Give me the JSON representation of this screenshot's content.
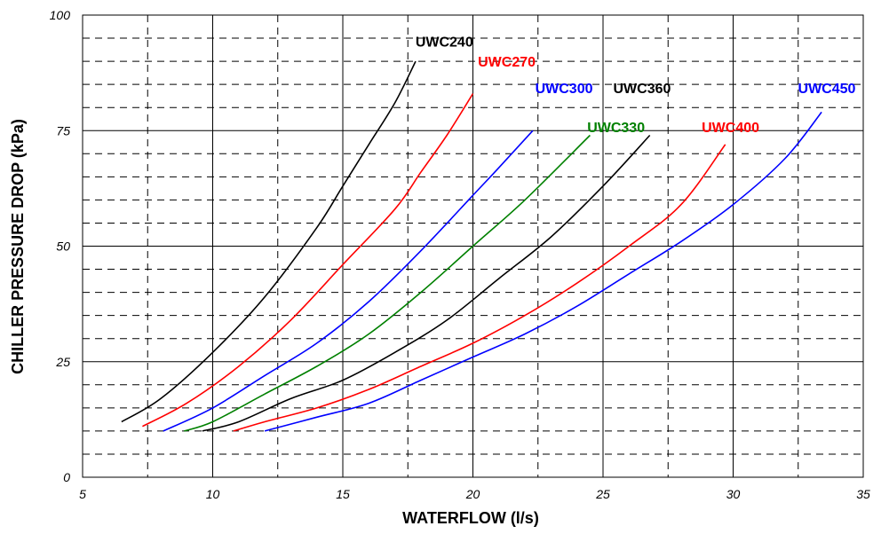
{
  "chart_data": {
    "type": "line",
    "xlabel": "WATERFLOW (l/s)",
    "ylabel": "CHILLER PRESSURE DROP (kPa)",
    "xlim": [
      5,
      35
    ],
    "ylim": [
      0,
      100
    ],
    "x_ticks": [
      "5",
      "10",
      "15",
      "20",
      "25",
      "30",
      "35"
    ],
    "y_ticks": [
      "0",
      "25",
      "50",
      "75",
      "100"
    ],
    "x_major_step": 5,
    "x_minor_step": 2.5,
    "y_major_step": 25,
    "y_minor_step": 5,
    "grid": true,
    "legend": "inline labels",
    "series": [
      {
        "name": "UWC240",
        "color": "#000000",
        "label_at": [
          18.9,
          94.3
        ],
        "x": [
          6.5,
          8,
          10,
          12,
          14,
          15,
          16,
          17,
          17.8
        ],
        "y": [
          12,
          17,
          27,
          39,
          54,
          63,
          72,
          81,
          90
        ]
      },
      {
        "name": "UWC270",
        "color": "#ff0000",
        "label_at": [
          21.3,
          90.0
        ],
        "x": [
          7.3,
          9,
          11,
          13,
          15,
          17,
          18,
          19,
          20
        ],
        "y": [
          11,
          16,
          24,
          34,
          46,
          58,
          66,
          74,
          83
        ]
      },
      {
        "name": "UWC300",
        "color": "#0000ff",
        "label_at": [
          23.5,
          84.3
        ],
        "x": [
          8.1,
          10,
          12,
          14,
          16,
          18,
          20,
          21,
          22.3
        ],
        "y": [
          10,
          15,
          22,
          29,
          38,
          49,
          61,
          67,
          75
        ]
      },
      {
        "name": "UWC330",
        "color": "#008000",
        "label_at": [
          25.5,
          75.8
        ],
        "x": [
          8.9,
          10,
          12,
          14,
          16,
          18,
          20,
          22,
          24.5
        ],
        "y": [
          10,
          12,
          18,
          24,
          31,
          40,
          50,
          60,
          74
        ]
      },
      {
        "name": "UWC360",
        "color": "#000000",
        "label_at": [
          26.5,
          84.3
        ],
        "x": [
          9.6,
          11,
          13,
          15,
          17,
          19,
          21,
          23,
          25,
          26.8
        ],
        "y": [
          10,
          12,
          17,
          21,
          27,
          34,
          43,
          52,
          63,
          74
        ]
      },
      {
        "name": "UWC400",
        "color": "#ff0000",
        "label_at": [
          29.9,
          75.8
        ],
        "x": [
          10.8,
          12,
          14,
          16,
          18,
          20,
          22,
          24,
          26,
          28,
          29.7
        ],
        "y": [
          10,
          12,
          15,
          19,
          24,
          29,
          35,
          42,
          50,
          59,
          72
        ]
      },
      {
        "name": "UWC450",
        "color": "#0000ff",
        "label_at": [
          33.6,
          84.3
        ],
        "x": [
          12,
          14,
          16,
          18,
          20,
          22,
          24,
          26,
          28,
          30,
          32,
          33.4
        ],
        "y": [
          10,
          13,
          16,
          21,
          26,
          31,
          37,
          44,
          51,
          59,
          69,
          79
        ]
      }
    ]
  }
}
